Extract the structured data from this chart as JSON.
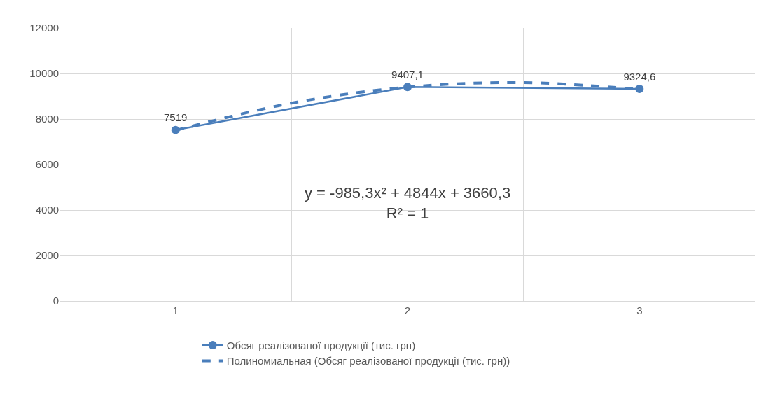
{
  "chart_data": {
    "type": "line",
    "x": [
      1,
      2,
      3
    ],
    "xlim": [
      0.5,
      3.5
    ],
    "xticks": [
      1,
      2,
      3
    ],
    "ylim": [
      0,
      12000
    ],
    "yticks": [
      0,
      2000,
      4000,
      6000,
      8000,
      10000,
      12000
    ],
    "grid": true,
    "legend": "bottom",
    "marker": "circle",
    "series": [
      {
        "name": "Обсяг реалізованої продукції (тис. грн)",
        "color": "#4a7ebb",
        "values": [
          7519,
          9407.1,
          9324.6
        ],
        "value_labels": [
          "7519",
          "9407,1",
          "9324,6"
        ],
        "line_style": "solid"
      },
      {
        "name": "Полиномиальная (Обсяг реалізованої продукції (тис. грн))",
        "color": "#4a7ebb",
        "x": [
          1,
          1.5,
          2,
          2.5,
          3
        ],
        "values": [
          7500,
          8700,
          9400,
          9600,
          9300
        ],
        "line_style": "dashed",
        "marker": "none"
      }
    ],
    "annotations": [
      "y = -985,3x² + 4844x + 3660,3\nR² = 1"
    ]
  }
}
